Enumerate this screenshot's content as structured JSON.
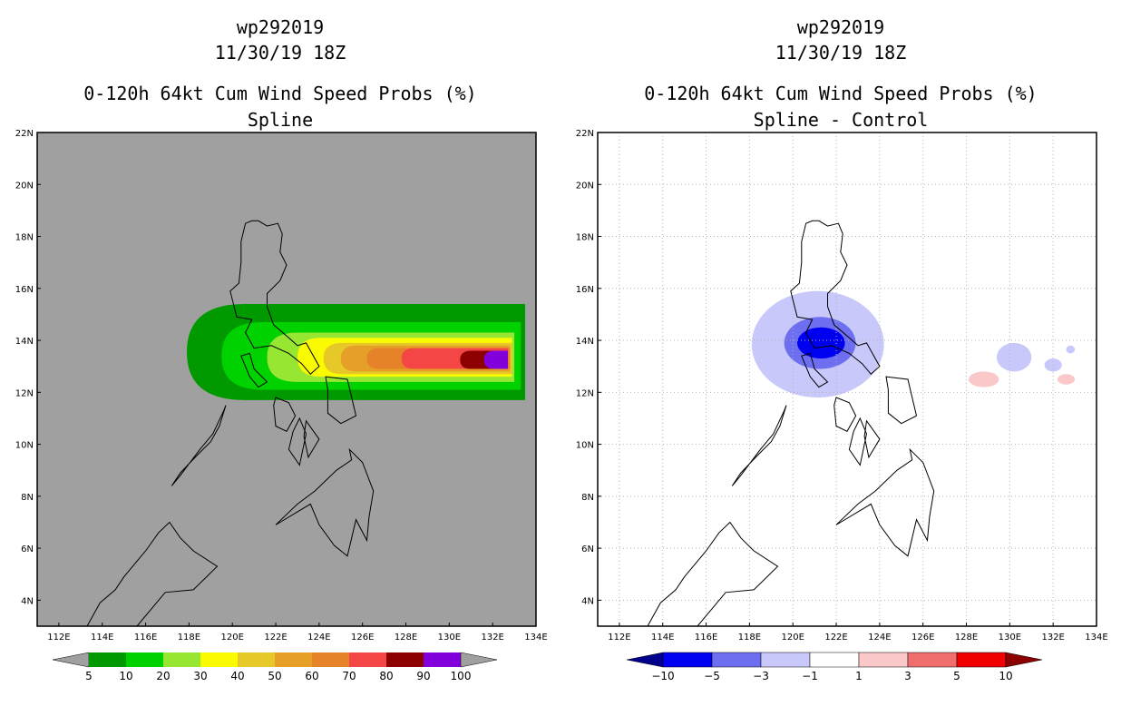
{
  "chart_data": [
    {
      "type": "heatmap",
      "title": "wp292019",
      "subtitle": "11/30/19 18Z",
      "product": "0-120h 64kt Cum Wind Speed Probs (%)",
      "variant": "Spline",
      "xlabel": "",
      "ylabel": "",
      "xlim": [
        111,
        134
      ],
      "ylim": [
        3,
        22
      ],
      "x_ticks": [
        "112E",
        "114E",
        "116E",
        "118E",
        "120E",
        "122E",
        "124E",
        "126E",
        "128E",
        "130E",
        "132E",
        "134E"
      ],
      "y_ticks": [
        "4N",
        "6N",
        "8N",
        "10N",
        "12N",
        "14N",
        "16N",
        "18N",
        "20N",
        "22N"
      ],
      "grid": false,
      "colorbar": {
        "levels": [
          "5",
          "10",
          "20",
          "30",
          "40",
          "50",
          "60",
          "70",
          "80",
          "90",
          "100"
        ],
        "colors": [
          "#009a00",
          "#00d200",
          "#96e632",
          "#fafa00",
          "#e6c828",
          "#e6a028",
          "#e68228",
          "#f54646",
          "#8c0000",
          "#8200dc"
        ],
        "under_color": "#a0a0a0",
        "over_color": "#a0a0a0"
      },
      "regions": [
        {
          "level": "5-10",
          "color": "#009a00",
          "lon": [
            117.9,
            133.5
          ],
          "lat": [
            11.7,
            15.4
          ]
        },
        {
          "level": "10-20",
          "color": "#00d200",
          "lon": [
            119.5,
            133.3
          ],
          "lat": [
            12.1,
            14.7
          ]
        },
        {
          "level": "20-30",
          "color": "#96e632",
          "lon": [
            121.6,
            133.0
          ],
          "lat": [
            12.4,
            14.3
          ]
        },
        {
          "level": "30-40",
          "color": "#fafa00",
          "lon": [
            123.0,
            132.9
          ],
          "lat": [
            12.6,
            14.1
          ]
        },
        {
          "level": "40-50",
          "color": "#e6c828",
          "lon": [
            124.2,
            132.9
          ],
          "lat": [
            12.7,
            13.9
          ]
        },
        {
          "level": "50-60",
          "color": "#e6a028",
          "lon": [
            125.0,
            132.8
          ],
          "lat": [
            12.8,
            13.8
          ]
        },
        {
          "level": "60-70",
          "color": "#e68228",
          "lon": [
            126.2,
            132.8
          ],
          "lat": [
            12.9,
            13.7
          ]
        },
        {
          "level": "70-80",
          "color": "#f54646",
          "lon": [
            127.8,
            132.7
          ],
          "lat": [
            12.9,
            13.7
          ]
        },
        {
          "level": "80-90",
          "color": "#8c0000",
          "lon": [
            130.5,
            132.7
          ],
          "lat": [
            12.9,
            13.6
          ]
        },
        {
          "level": "90-100",
          "color": "#8200dc",
          "lon": [
            131.6,
            132.7
          ],
          "lat": [
            12.9,
            13.6
          ]
        }
      ]
    },
    {
      "type": "heatmap",
      "title": "wp292019",
      "subtitle": "11/30/19 18Z",
      "product": "0-120h 64kt Cum Wind Speed Probs (%)",
      "variant": "Spline - Control",
      "xlabel": "",
      "ylabel": "",
      "xlim": [
        111,
        134
      ],
      "ylim": [
        3,
        22
      ],
      "x_ticks": [
        "112E",
        "114E",
        "116E",
        "118E",
        "120E",
        "122E",
        "124E",
        "126E",
        "128E",
        "130E",
        "132E",
        "134E"
      ],
      "y_ticks": [
        "4N",
        "6N",
        "8N",
        "10N",
        "12N",
        "14N",
        "16N",
        "18N",
        "20N",
        "22N"
      ],
      "grid": true,
      "colorbar": {
        "levels": [
          "−10",
          "−5",
          "−3",
          "−1",
          "1",
          "3",
          "5",
          "10"
        ],
        "colors": [
          "#0000f0",
          "#6e6ef0",
          "#c8c8fa",
          "#ffffff",
          "#fac8c8",
          "#f06e6e",
          "#f00000"
        ],
        "under_color": "#00008c",
        "over_color": "#8c0000"
      },
      "regions": [
        {
          "level": "-3 to -1",
          "color": "#c8c8fa",
          "lon": [
            118.1,
            124.2
          ],
          "lat": [
            11.8,
            15.9
          ]
        },
        {
          "level": "-5 to -3",
          "color": "#6e6ef0",
          "lon": [
            119.6,
            122.9
          ],
          "lat": [
            12.9,
            14.9
          ]
        },
        {
          "level": "-10 to -5",
          "color": "#0000f0",
          "lon": [
            120.2,
            122.4
          ],
          "lat": [
            13.3,
            14.5
          ]
        },
        {
          "level": "-3 to -1",
          "color": "#c8c8fa",
          "lon": [
            129.4,
            131.0
          ],
          "lat": [
            12.8,
            13.9
          ]
        },
        {
          "level": "-3 to -1",
          "color": "#c8c8fa",
          "lon": [
            131.6,
            132.4
          ],
          "lat": [
            12.8,
            13.3
          ]
        },
        {
          "level": "-3 to -1",
          "color": "#c8c8fa",
          "lon": [
            132.6,
            133.0
          ],
          "lat": [
            13.5,
            13.8
          ]
        },
        {
          "level": "1 to 3",
          "color": "#fac8c8",
          "lon": [
            128.1,
            129.5
          ],
          "lat": [
            12.2,
            12.8
          ]
        },
        {
          "level": "1 to 3",
          "color": "#fac8c8",
          "lon": [
            132.2,
            133.0
          ],
          "lat": [
            12.3,
            12.7
          ]
        }
      ]
    }
  ],
  "coastline_color": "#000000"
}
